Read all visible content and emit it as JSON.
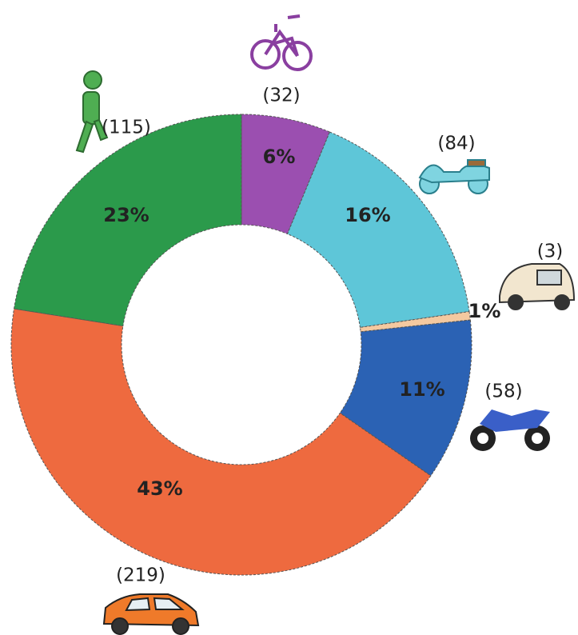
{
  "chart_data": {
    "type": "donut",
    "values": [
      32,
      84,
      3,
      58,
      219,
      115
    ],
    "value_labels": [
      "6%",
      "16%",
      "1%",
      "11%",
      "43%",
      "23%"
    ],
    "count_labels": [
      "(32)",
      "(84)",
      "(3)",
      "(58)",
      "(219)",
      "(115)"
    ],
    "colors": [
      "#9b4fb0",
      "#5ec6d8",
      "#f4c9a0",
      "#2b62b4",
      "#ee6a3f",
      "#2b9a4b"
    ]
  }
}
